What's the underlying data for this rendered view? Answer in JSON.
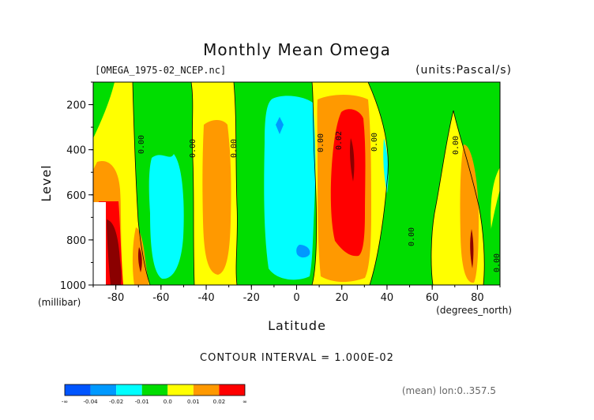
{
  "chart_data": {
    "type": "heatmap",
    "title": "Monthly Mean Omega",
    "file_label": "[OMEGA_1975-02_NCEP.nc]",
    "units_label": "(units:Pascal/s)",
    "xlabel": "Latitude",
    "x_units": "(degrees_north)",
    "ylabel": "Level",
    "y_units": "(millibar)",
    "xlim": [
      -90,
      90
    ],
    "ylim": [
      1000,
      100
    ],
    "x_ticks": [
      "-80",
      "-60",
      "-40",
      "-20",
      "0",
      "20",
      "40",
      "60",
      "80"
    ],
    "y_ticks": [
      "200",
      "400",
      "600",
      "800",
      "1000"
    ],
    "contour_interval": "CONTOUR INTERVAL = 1.000E-02",
    "mean_label": "(mean) lon:0..357.5",
    "contour_labels": [
      "0.00",
      "0.00",
      "0.00",
      "0.00",
      "0.02",
      "0.00",
      "0.00",
      "0.00",
      "0.00"
    ],
    "colorbar": {
      "labels": [
        "-∞",
        "-0.04",
        "-0.02",
        "-0.01",
        "0.0",
        "0.01",
        "0.02",
        "∞"
      ],
      "colors": [
        "#0055ff",
        "#0099ff",
        "#00ffff",
        "#00dd00",
        "#ffff00",
        "#ff9900",
        "#ff0000"
      ]
    },
    "colors": {
      "lt_m04": "#0055ff",
      "m04_m02": "#0099ff",
      "m02_m01": "#00ffff",
      "m01_0": "#00dd00",
      "0_001": "#ffff00",
      "001_002": "#ff9900",
      "002_003": "#ff0000",
      "gt_003": "#8b0000"
    }
  }
}
